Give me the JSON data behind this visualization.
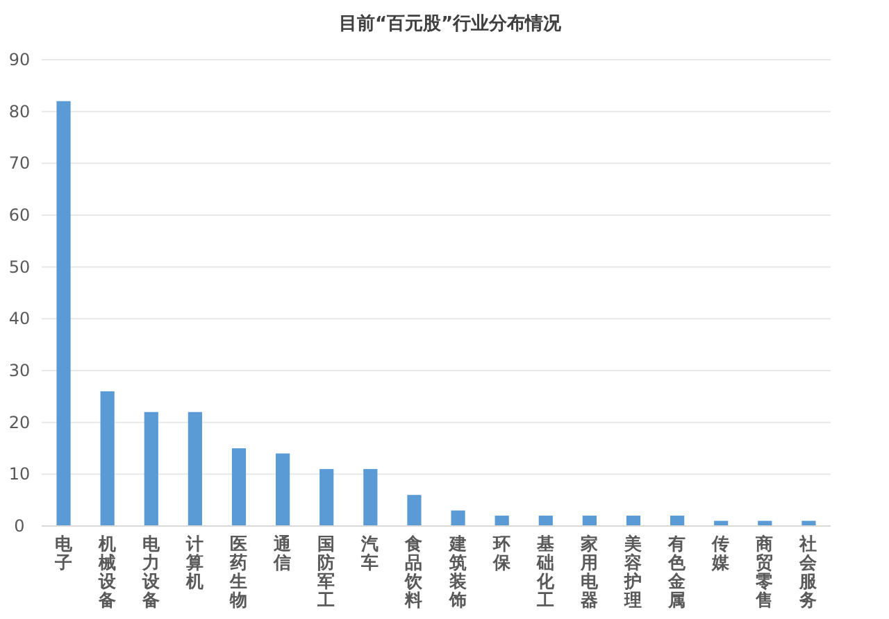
{
  "chart_data": {
    "type": "bar",
    "title": "目前“百元股”行业分布情况",
    "categories": [
      "电子",
      "机械设备",
      "电力设备",
      "计算机",
      "医药生物",
      "通信",
      "国防军工",
      "汽车",
      "食品饮料",
      "建筑装饰",
      "环保",
      "基础化工",
      "家用电器",
      "美容护理",
      "有色金属",
      "传媒",
      "商贸零售",
      "社会服务"
    ],
    "values": [
      82,
      26,
      22,
      22,
      15,
      14,
      11,
      11,
      6,
      3,
      2,
      2,
      2,
      2,
      2,
      1,
      1,
      1
    ],
    "color": "#5b9bd5",
    "ylim": [
      0,
      90
    ],
    "yticks": [
      0,
      10,
      20,
      30,
      40,
      50,
      60,
      70,
      80,
      90
    ],
    "grid": "y"
  }
}
